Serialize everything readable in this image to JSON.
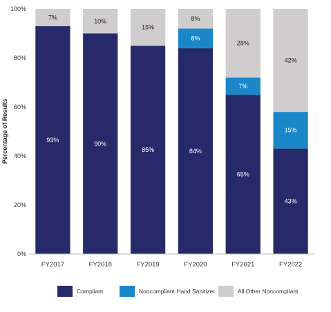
{
  "chart_data": {
    "type": "bar",
    "stacked": true,
    "ylabel": "Percentage of Results",
    "ylim": [
      0,
      100
    ],
    "yticks": [
      "0%",
      "20%",
      "40%",
      "60%",
      "80%",
      "100%"
    ],
    "categories": [
      "FY2017",
      "FY2018",
      "FY2019",
      "FY2020",
      "FY2021",
      "FY2022"
    ],
    "series": [
      {
        "name": "Compliant",
        "color": "#262a69",
        "label_color": "#ffffff",
        "values": [
          93,
          90,
          85,
          84,
          65,
          43
        ],
        "labels": [
          "93%",
          "90%",
          "85%",
          "84%",
          "65%",
          "43%"
        ]
      },
      {
        "name": "Noncompliant Hand Sanitizer",
        "color": "#1a87c8",
        "label_color": "#ffffff",
        "values": [
          0,
          0,
          0,
          8,
          7,
          15
        ],
        "labels": [
          "",
          "",
          "",
          "8%",
          "7%",
          "15%"
        ]
      },
      {
        "name": "All Other Noncompliant",
        "color": "#cfcdcd",
        "label_color": "#222222",
        "values": [
          7,
          10,
          15,
          8,
          28,
          42
        ],
        "labels": [
          "7%",
          "10%",
          "15%",
          "8%",
          "28%",
          "42%"
        ]
      }
    ],
    "grid": false,
    "legend_position": "bottom"
  }
}
